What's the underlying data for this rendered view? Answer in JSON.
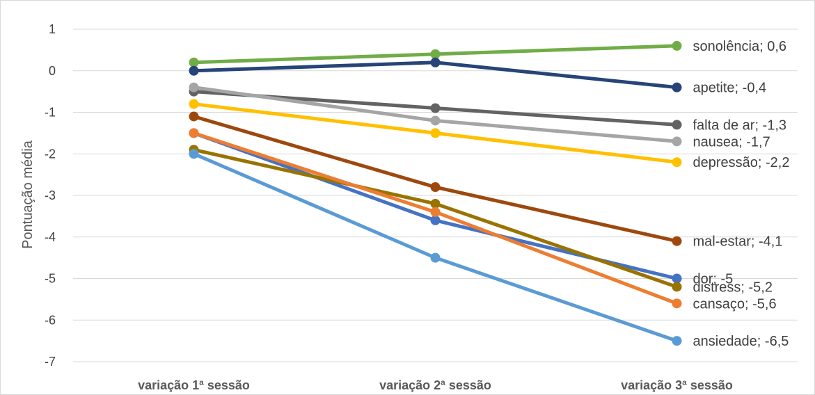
{
  "chart_data": {
    "type": "line",
    "ylabel": "Pontuação média",
    "ylim": [
      -7,
      1
    ],
    "yticks": [
      1,
      0,
      -1,
      -2,
      -3,
      -4,
      -5,
      -6,
      -7
    ],
    "grid": true,
    "legend": "none",
    "categories": [
      "variação 1ª sessão",
      "variação 2ª sessão",
      "variação 3ª sessão"
    ],
    "series": [
      {
        "name": "sonolência",
        "values": [
          0.2,
          0.4,
          0.6
        ],
        "color": "#70ad47",
        "label": "sonolência; 0,6"
      },
      {
        "name": "apetite",
        "values": [
          0.0,
          0.2,
          -0.4
        ],
        "color": "#264478",
        "label": "apetite; -0,4"
      },
      {
        "name": "falta de ar",
        "values": [
          -0.5,
          -0.9,
          -1.3
        ],
        "color": "#636363",
        "label": "falta de ar; -1,3"
      },
      {
        "name": "nausea",
        "values": [
          -0.4,
          -1.2,
          -1.7
        ],
        "color": "#a5a5a5",
        "label": "nausea; -1,7"
      },
      {
        "name": "depressão",
        "values": [
          -0.8,
          -1.5,
          -2.2
        ],
        "color": "#ffc000",
        "label": "depressão; -2,2"
      },
      {
        "name": "mal-estar",
        "values": [
          -1.1,
          -2.8,
          -4.1
        ],
        "color": "#9e480e",
        "label": "mal-estar; -4,1"
      },
      {
        "name": "dor",
        "values": [
          -1.5,
          -3.6,
          -5.0
        ],
        "color": "#4472c4",
        "label": "dor; -5"
      },
      {
        "name": "distress",
        "values": [
          -1.9,
          -3.2,
          -5.2
        ],
        "color": "#997300",
        "label": "distress; -5,2"
      },
      {
        "name": "cansaço",
        "values": [
          -1.5,
          -3.4,
          -5.6
        ],
        "color": "#ed7d31",
        "label": "cansaço; -5,6"
      },
      {
        "name": "ansiedade",
        "values": [
          -2.0,
          -4.5,
          -6.5
        ],
        "color": "#5b9bd5",
        "label": "ansiedade; -6,5"
      }
    ]
  }
}
